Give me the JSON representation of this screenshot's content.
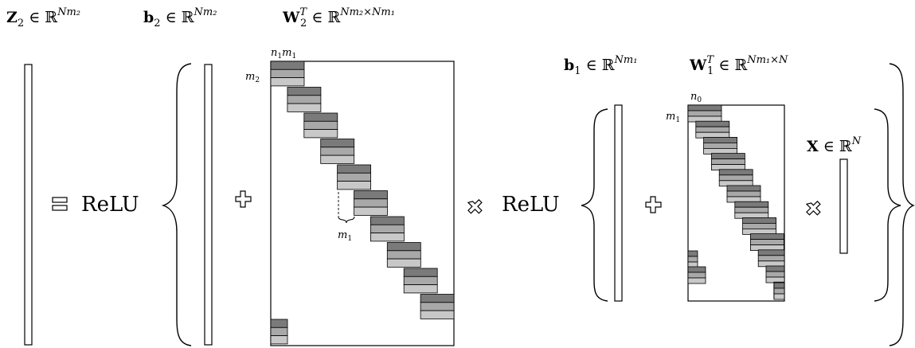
{
  "labels": {
    "z2": {
      "sym": "Z",
      "sub": "2",
      "rel": " ∈ ℝ",
      "sup": "Nm₂"
    },
    "b2": {
      "sym": "b",
      "sub": "2",
      "rel": " ∈ ℝ",
      "sup": "Nm₂"
    },
    "w2": {
      "sym": "W",
      "sub": "2",
      "supT": "T",
      "rel": " ∈ ℝ",
      "sup": "Nm₂×Nm₁"
    },
    "b1": {
      "sym": "b",
      "sub": "1",
      "rel": " ∈ ℝ",
      "sup": "Nm₁"
    },
    "w1": {
      "sym": "W",
      "sub": "1",
      "supT": "T",
      "rel": " ∈ ℝ",
      "sup": "Nm₁×N"
    },
    "x": {
      "sym": "X",
      "rel": " ∈ ℝ",
      "sup": "N"
    }
  },
  "operators": {
    "relu_1": "ReLU",
    "relu_2": "ReLU"
  },
  "annotations": {
    "w2_cols": {
      "a": "n",
      "a_sub": "1",
      "b": "m",
      "b_sub": "1"
    },
    "w2_rows": {
      "a": "m",
      "a_sub": "2"
    },
    "w2_gap": {
      "a": "m",
      "a_sub": "1"
    },
    "w1_cols": {
      "a": "n",
      "a_sub": "0"
    },
    "w1_rows": {
      "a": "m",
      "a_sub": "1"
    }
  },
  "colors": {
    "dark_block": "#7a7a7a",
    "mid_block": "#a8a8a8",
    "light_block": "#c8c8c8"
  }
}
